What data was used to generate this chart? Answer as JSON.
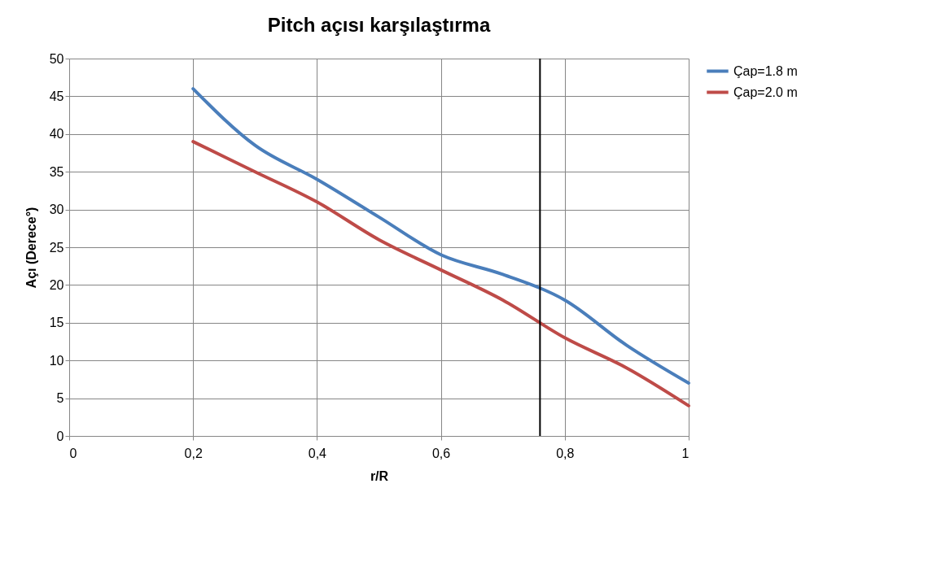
{
  "chart_data": {
    "type": "line",
    "title": "Pitch açısı karşılaştırma",
    "xlabel": "r/R",
    "ylabel": "Açı (Derece°)",
    "x": [
      0.2,
      0.3,
      0.4,
      0.5,
      0.6,
      0.7,
      0.8,
      0.9,
      1.0
    ],
    "series": [
      {
        "name": "Çap=1.8 m",
        "color": "#4a7ebb",
        "values": [
          46,
          38.5,
          34,
          29,
          24,
          21.4,
          18,
          12,
          7
        ]
      },
      {
        "name": "Çap=2.0 m",
        "color": "#be4b48",
        "values": [
          39,
          35,
          31,
          26,
          22,
          18,
          13,
          9,
          4
        ]
      }
    ],
    "xlim": [
      0,
      1
    ],
    "xticks": [
      {
        "value": 0,
        "label": "0"
      },
      {
        "value": 0.2,
        "label": "0,2"
      },
      {
        "value": 0.4,
        "label": "0,4"
      },
      {
        "value": 0.6,
        "label": "0,6"
      },
      {
        "value": 0.8,
        "label": "0,8"
      },
      {
        "value": 1,
        "label": "1"
      }
    ],
    "ylim": [
      0,
      50
    ],
    "yticks": [
      0,
      5,
      10,
      15,
      20,
      25,
      30,
      35,
      40,
      45,
      50
    ],
    "ref_lines": [
      {
        "axis": "x",
        "value": 0.76,
        "color": "#000000"
      }
    ],
    "grid": true,
    "legend": "right",
    "marker": "none",
    "line_style": "solid"
  }
}
